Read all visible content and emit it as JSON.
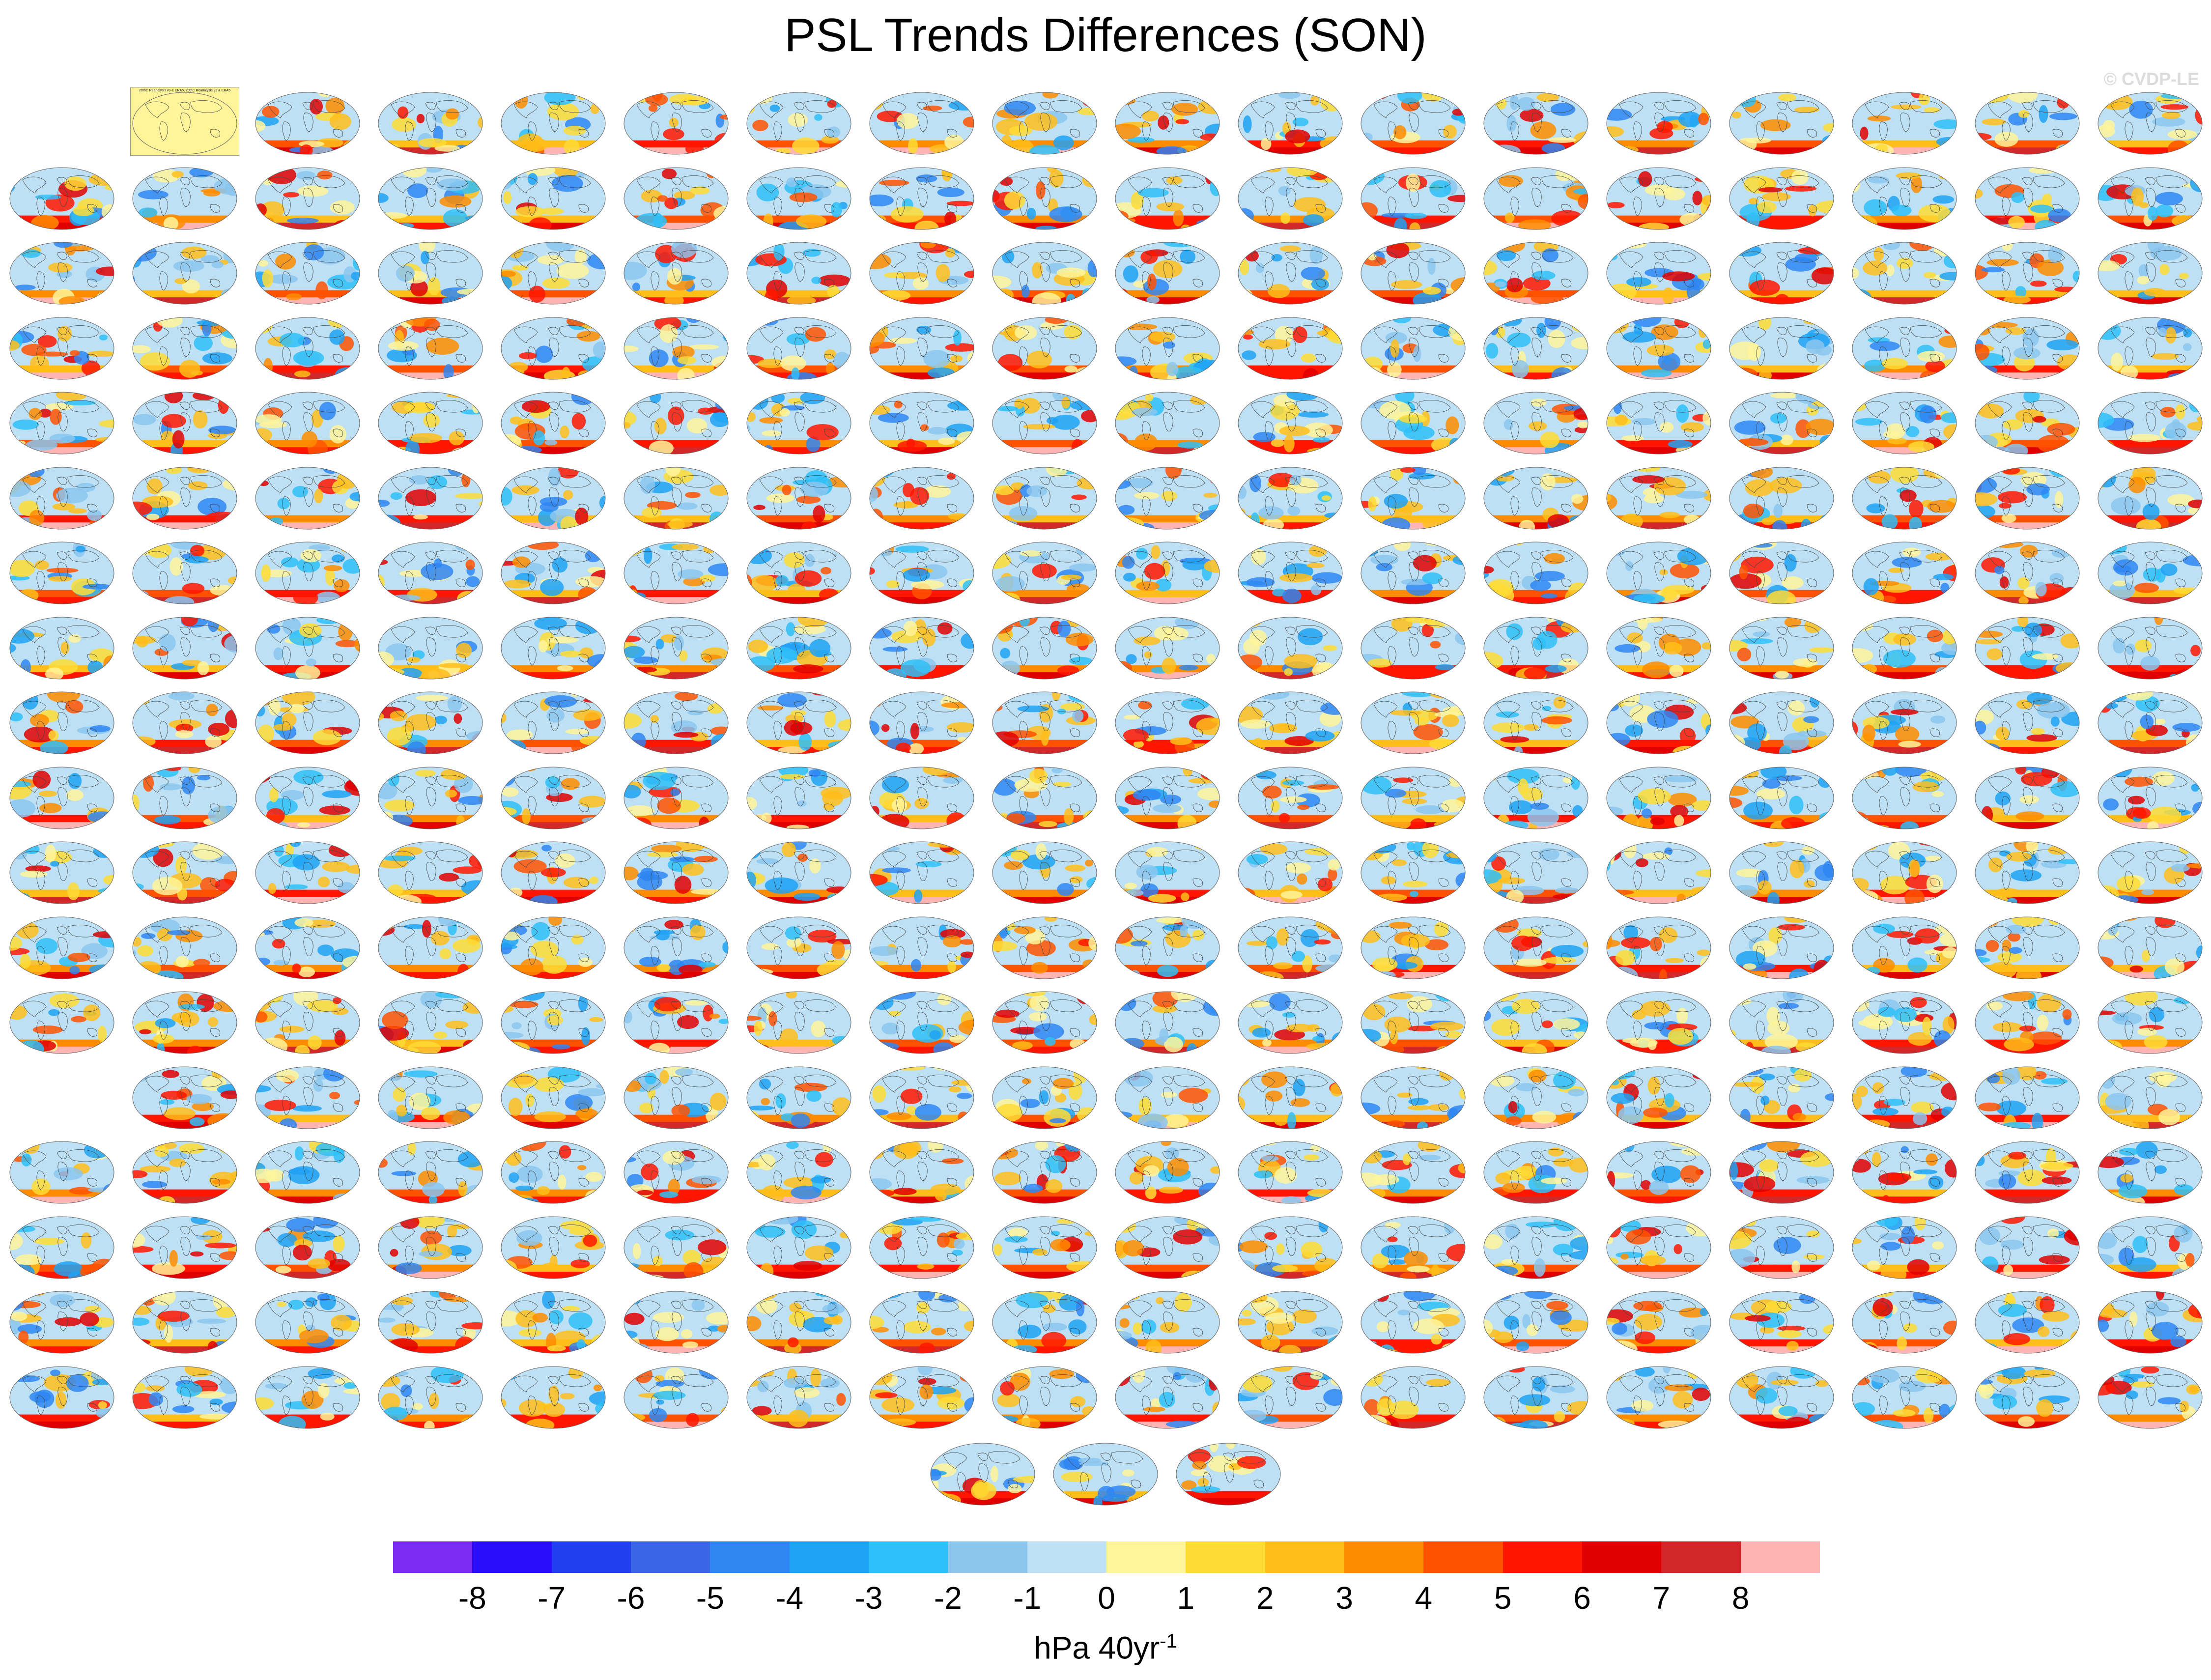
{
  "title": "PSL Trends Differences (SON)",
  "watermark": "© CVDP-LE",
  "colorbar": {
    "colors": [
      "#7d2bf2",
      "#2a0df8",
      "#2040f0",
      "#3a66e6",
      "#2f86f2",
      "#1ea2f5",
      "#2ec0f8",
      "#8bc6ee",
      "#bde0f4",
      "#fff49a",
      "#ffdc35",
      "#ffbe1a",
      "#ff8c00",
      "#ff5200",
      "#ff1600",
      "#e00000",
      "#d2282a",
      "#ffb4b4"
    ],
    "tick_labels": [
      "-8",
      "-7",
      "-6",
      "-5",
      "-4",
      "-3",
      "-2",
      "-1",
      "0",
      "1",
      "2",
      "3",
      "4",
      "5",
      "6",
      "7",
      "8"
    ],
    "units_base": "hPa 40yr",
    "units_exp": "-1"
  },
  "panels": {
    "columns": 18,
    "rows": 18,
    "first_row_start_col": 1,
    "empty_cells": [
      [
        13,
        0
      ]
    ],
    "bottom_row_count": 3,
    "reference_label": "20thC Reanalysis v3 & ERA5, 20thC Reanalysis v3 & ERA5",
    "label_colors": [
      "#2a8a8a",
      "#2a8a8a",
      "#2a8a8a",
      "#3c9c3c",
      "#3c9c3c",
      "#3c9c3c",
      "#3c9c3c",
      "#3c9c3c",
      "#3c9c3c",
      "#7a7a7a",
      "#7a7a7a",
      "#c8502a",
      "#c8502a",
      "#c8502a",
      "#7a3cc8",
      "#7a3cc8",
      "#c8a028",
      "#c8a028",
      "#c8a028"
    ]
  }
}
